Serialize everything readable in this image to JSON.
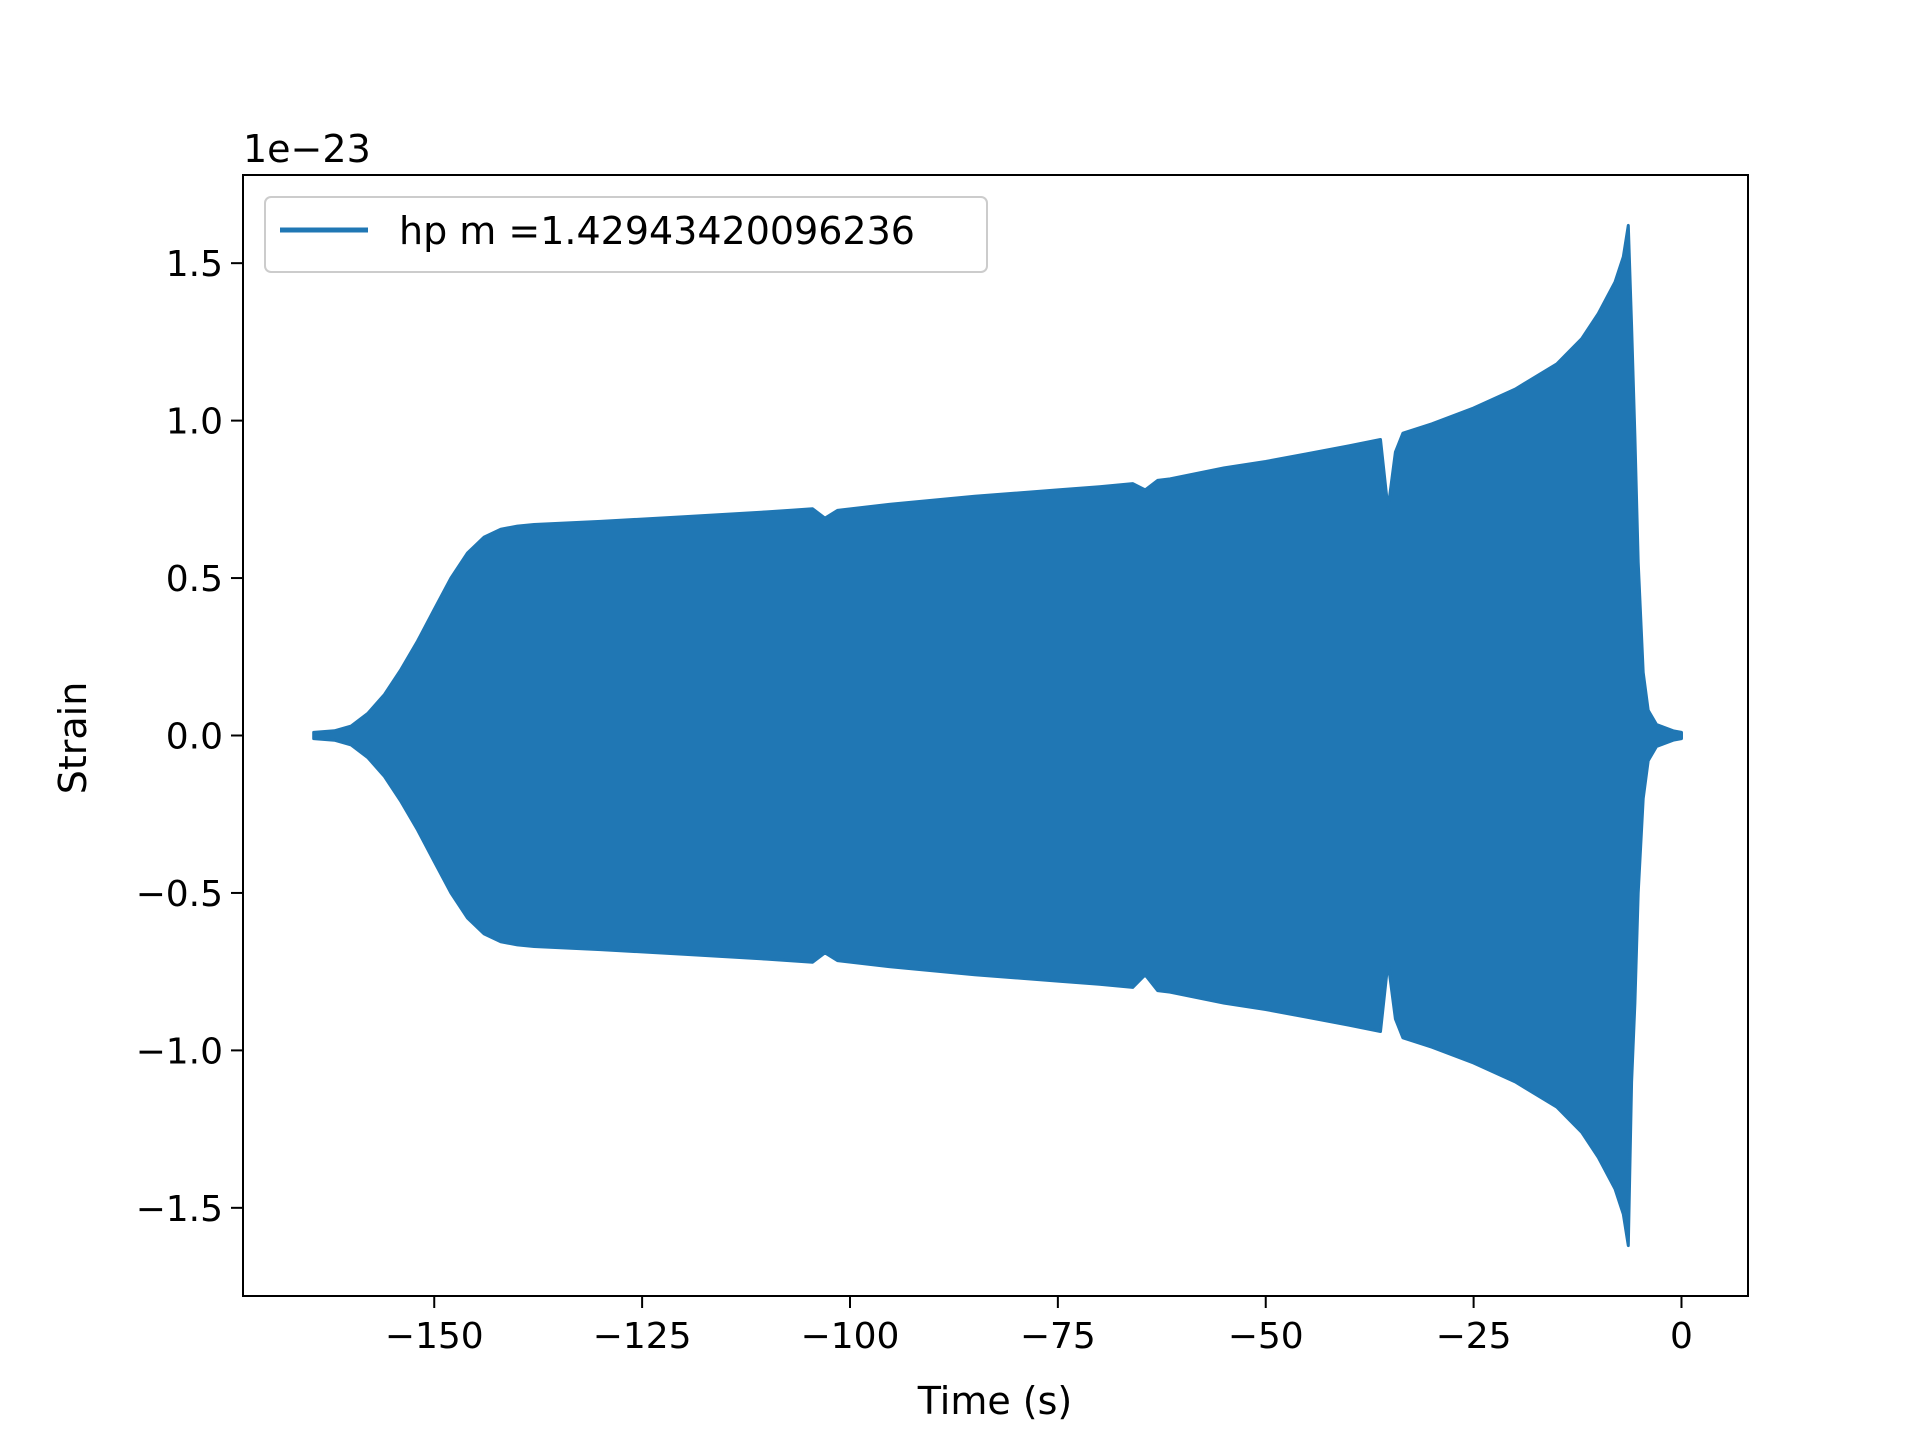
{
  "chart_data": {
    "type": "line",
    "title": "",
    "xlabel": "Time (s)",
    "ylabel": "Strain",
    "y_offset_text": "1e−23",
    "xlim": [
      -173,
      8
    ],
    "ylim": [
      -1.78,
      1.78
    ],
    "x_ticks": [
      -150,
      -125,
      -100,
      -75,
      -50,
      -25,
      0
    ],
    "x_tick_labels": [
      "−150",
      "−125",
      "−100",
      "−75",
      "−50",
      "−25",
      "0"
    ],
    "y_ticks": [
      -1.5,
      -1.0,
      -0.5,
      0.0,
      0.5,
      1.0,
      1.5
    ],
    "y_tick_labels": [
      "−1.5",
      "−1.0",
      "−0.5",
      "0.0",
      "0.5",
      "1.0",
      "1.5"
    ],
    "grid": false,
    "legend_position": "upper-left",
    "series": [
      {
        "name": "hp m =1.42943420096236",
        "color": "#2077b4",
        "envelope": {
          "t": [
            -164.5,
            -162,
            -160,
            -158,
            -156,
            -154,
            -152,
            -150,
            -148,
            -146,
            -144,
            -142,
            -140,
            -138,
            -130,
            -120,
            -110,
            -104.5,
            -103,
            -101.5,
            -95,
            -85,
            -75,
            -70,
            -66,
            -64.5,
            -63,
            -61.5,
            -55,
            -50,
            -45,
            -40,
            -36.2,
            -35.3,
            -34.4,
            -33.5,
            -30,
            -25,
            -20,
            -15,
            -12,
            -10,
            -8,
            -7,
            -6.4,
            -6.0,
            -5.6,
            -5.2,
            -4.6,
            -4.0,
            -3.0,
            -1.0,
            0.0
          ],
          "upper": [
            0.01,
            0.015,
            0.03,
            0.07,
            0.13,
            0.21,
            0.3,
            0.4,
            0.5,
            0.58,
            0.63,
            0.655,
            0.665,
            0.67,
            0.68,
            0.695,
            0.71,
            0.72,
            0.69,
            0.715,
            0.735,
            0.76,
            0.78,
            0.79,
            0.8,
            0.78,
            0.81,
            0.815,
            0.85,
            0.87,
            0.895,
            0.92,
            0.94,
            0.72,
            0.9,
            0.96,
            0.99,
            1.04,
            1.1,
            1.18,
            1.26,
            1.34,
            1.44,
            1.52,
            1.62,
            1.3,
            0.95,
            0.55,
            0.2,
            0.08,
            0.035,
            0.015,
            0.01
          ],
          "lower": [
            -0.01,
            -0.015,
            -0.03,
            -0.07,
            -0.13,
            -0.21,
            -0.3,
            -0.4,
            -0.5,
            -0.58,
            -0.63,
            -0.655,
            -0.665,
            -0.67,
            -0.68,
            -0.695,
            -0.71,
            -0.72,
            -0.69,
            -0.715,
            -0.735,
            -0.76,
            -0.78,
            -0.79,
            -0.8,
            -0.76,
            -0.81,
            -0.815,
            -0.85,
            -0.87,
            -0.895,
            -0.92,
            -0.94,
            -0.72,
            -0.9,
            -0.96,
            -0.99,
            -1.04,
            -1.1,
            -1.18,
            -1.26,
            -1.34,
            -1.44,
            -1.52,
            -1.62,
            -1.1,
            -0.85,
            -0.5,
            -0.2,
            -0.08,
            -0.035,
            -0.015,
            -0.01
          ]
        }
      }
    ]
  }
}
